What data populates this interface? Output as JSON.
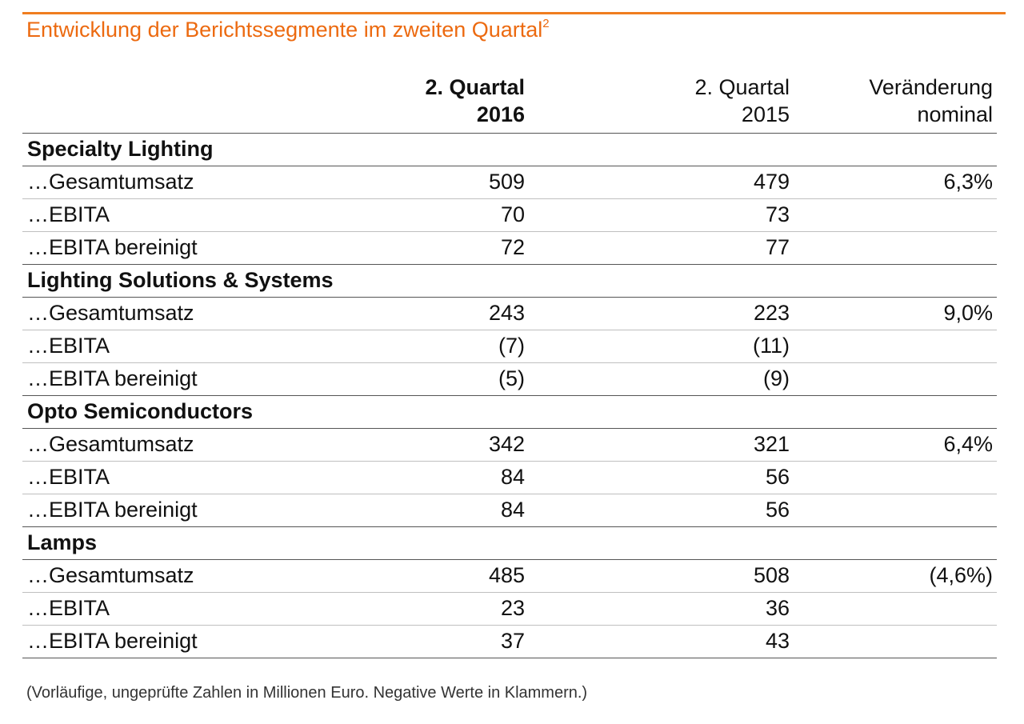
{
  "title": "Entwicklung der Berichtssegmente im zweiten Quartal",
  "title_footnote_mark": "2",
  "accent_color": "#ec6a10",
  "columns": {
    "q2_2016_line1": "2. Quartal",
    "q2_2016_line2": "2016",
    "q2_2015_line1": "2. Quartal",
    "q2_2015_line2": "2015",
    "change_line1": "Veränderung",
    "change_line2": "nominal"
  },
  "segments": [
    {
      "name": "Specialty Lighting",
      "rows": [
        {
          "label": "…Gesamtumsatz",
          "q2_2016": "509",
          "q2_2015": "479",
          "change": "6,3%"
        },
        {
          "label": "…EBITA",
          "q2_2016": "70",
          "q2_2015": "73",
          "change": ""
        },
        {
          "label": "…EBITA bereinigt",
          "q2_2016": "72",
          "q2_2015": "77",
          "change": ""
        }
      ]
    },
    {
      "name": "Lighting Solutions & Systems",
      "rows": [
        {
          "label": "…Gesamtumsatz",
          "q2_2016": "243",
          "q2_2015": "223",
          "change": "9,0%"
        },
        {
          "label": "…EBITA",
          "q2_2016": "(7)",
          "q2_2015": "(11)",
          "change": ""
        },
        {
          "label": "…EBITA bereinigt",
          "q2_2016": "(5)",
          "q2_2015": "(9)",
          "change": ""
        }
      ]
    },
    {
      "name": "Opto Semiconductors",
      "rows": [
        {
          "label": "…Gesamtumsatz",
          "q2_2016": "342",
          "q2_2015": "321",
          "change": "6,4%"
        },
        {
          "label": "…EBITA",
          "q2_2016": "84",
          "q2_2015": "56",
          "change": ""
        },
        {
          "label": "…EBITA bereinigt",
          "q2_2016": "84",
          "q2_2015": "56",
          "change": ""
        }
      ]
    },
    {
      "name": "Lamps",
      "rows": [
        {
          "label": "…Gesamtumsatz",
          "q2_2016": "485",
          "q2_2015": "508",
          "change": "(4,6%)"
        },
        {
          "label": "…EBITA",
          "q2_2016": "23",
          "q2_2015": "36",
          "change": ""
        },
        {
          "label": "…EBITA bereinigt",
          "q2_2016": "37",
          "q2_2015": "43",
          "change": ""
        }
      ]
    }
  ],
  "footnote": "(Vorläufige, ungeprüfte Zahlen in Millionen Euro. Negative Werte in Klammern.)"
}
